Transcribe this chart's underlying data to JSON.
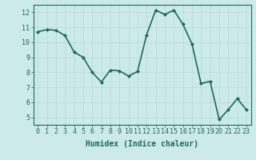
{
  "x": [
    0,
    1,
    2,
    3,
    4,
    5,
    6,
    7,
    8,
    9,
    10,
    11,
    12,
    13,
    14,
    15,
    16,
    17,
    18,
    19,
    20,
    21,
    22,
    23
  ],
  "y": [
    10.7,
    10.85,
    10.8,
    10.45,
    9.35,
    9.0,
    8.0,
    7.35,
    8.15,
    8.1,
    7.75,
    8.05,
    10.5,
    12.15,
    11.85,
    12.15,
    11.2,
    9.9,
    7.25,
    7.4,
    4.85,
    5.5,
    6.25,
    5.5
  ],
  "line_color": "#2e8b6e",
  "marker": "D",
  "marker_size": 2.0,
  "line_width": 1.2,
  "xlabel": "Humidex (Indice chaleur)",
  "ylim": [
    4.5,
    12.5
  ],
  "xlim": [
    -0.5,
    23.5
  ],
  "yticks": [
    5,
    6,
    7,
    8,
    9,
    10,
    11,
    12
  ],
  "xticks": [
    0,
    1,
    2,
    3,
    4,
    5,
    6,
    7,
    8,
    9,
    10,
    11,
    12,
    13,
    14,
    15,
    16,
    17,
    18,
    19,
    20,
    21,
    22,
    23
  ],
  "background_color": "#cceaea",
  "grid_color": "#b8d8d8",
  "line_dark": "#1e6b57",
  "xlabel_fontsize": 7,
  "tick_fontsize": 6
}
